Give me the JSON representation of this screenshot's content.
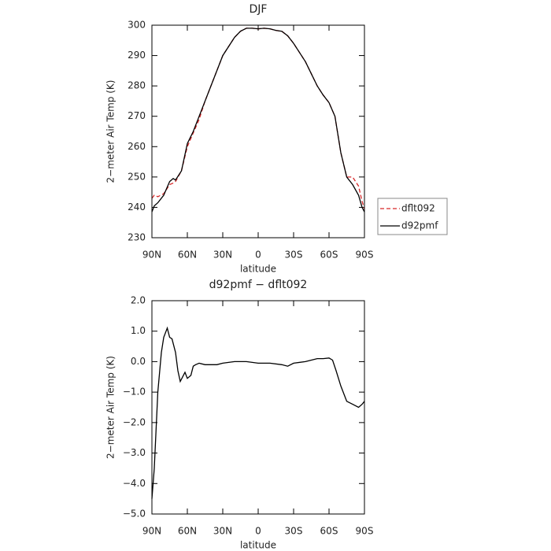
{
  "chart_data": [
    {
      "type": "line",
      "title": "DJF",
      "xlabel": "latitude",
      "ylabel": "2−meter Air Temp (K)",
      "x": [
        90,
        88,
        85,
        80,
        75,
        72,
        70,
        65,
        60,
        55,
        50,
        45,
        40,
        35,
        30,
        25,
        20,
        15,
        10,
        5,
        0,
        -5,
        -10,
        -15,
        -20,
        -25,
        -30,
        -35,
        -40,
        -45,
        -50,
        -55,
        -60,
        -65,
        -70,
        -75,
        -80,
        -85,
        -88,
        -90
      ],
      "series": [
        {
          "name": "dflt092",
          "color": "#d62728",
          "dash": true,
          "values": [
            243,
            244,
            243.5,
            244.5,
            247.5,
            248,
            248.5,
            252,
            260,
            264.5,
            269,
            275,
            280,
            285,
            290,
            293,
            296,
            298,
            299,
            299,
            298.8,
            299,
            298.8,
            298.3,
            298,
            296.5,
            294,
            291,
            288,
            284,
            280,
            277,
            274.5,
            270,
            258,
            250,
            250,
            247,
            242,
            239.5
          ]
        },
        {
          "name": "d92pmf",
          "color": "#000000",
          "dash": false,
          "values": [
            238.5,
            240.5,
            241.5,
            244,
            248.5,
            249.5,
            249,
            252,
            261,
            265,
            270,
            275,
            280,
            285,
            290,
            293,
            296,
            298,
            299,
            299,
            298.8,
            299,
            298.8,
            298.3,
            298,
            296.5,
            294,
            291,
            288,
            284,
            280,
            277,
            274.5,
            270,
            258,
            250,
            247.5,
            244,
            240,
            238.5
          ]
        }
      ],
      "xlim": [
        90,
        -90
      ],
      "ylim": [
        230,
        300
      ],
      "xticks": [
        {
          "value": 90,
          "label": "90N"
        },
        {
          "value": 60,
          "label": "60N"
        },
        {
          "value": 30,
          "label": "30N"
        },
        0,
        {
          "value": -30,
          "label": "30S"
        },
        {
          "value": -60,
          "label": "60S"
        },
        {
          "value": -90,
          "label": "90S"
        }
      ],
      "yticks": [
        230,
        240,
        250,
        260,
        270,
        280,
        290,
        300
      ],
      "legend": "right"
    },
    {
      "type": "line",
      "title": "d92pmf − dflt092",
      "xlabel": "latitude",
      "ylabel": "2−meter Air Temp (K)",
      "x": [
        90,
        88,
        85,
        82,
        80,
        77,
        75,
        73,
        70,
        68,
        66,
        64,
        62,
        60,
        57,
        55,
        53,
        50,
        45,
        40,
        35,
        30,
        20,
        10,
        0,
        -10,
        -20,
        -25,
        -30,
        -40,
        -50,
        -55,
        -60,
        -63,
        -66,
        -70,
        -75,
        -80,
        -85,
        -88,
        -90
      ],
      "series": [
        {
          "name": "d92pmf − dflt092",
          "color": "#000000",
          "dash": false,
          "values": [
            -4.5,
            -3.5,
            -1,
            0.3,
            0.8,
            1.1,
            0.8,
            0.75,
            0.3,
            -0.3,
            -0.65,
            -0.5,
            -0.35,
            -0.55,
            -0.45,
            -0.15,
            -0.1,
            -0.05,
            -0.1,
            -0.1,
            -0.1,
            -0.05,
            0,
            0,
            -0.05,
            -0.05,
            -0.1,
            -0.15,
            -0.05,
            0,
            0.1,
            0.1,
            0.12,
            0.05,
            -0.3,
            -0.8,
            -1.3,
            -1.4,
            -1.5,
            -1.4,
            -1.3
          ]
        }
      ],
      "xlim": [
        90,
        -90
      ],
      "ylim": [
        -5,
        2
      ],
      "xticks": [
        {
          "value": 90,
          "label": "90N"
        },
        {
          "value": 60,
          "label": "60N"
        },
        {
          "value": 30,
          "label": "30N"
        },
        0,
        {
          "value": -30,
          "label": "30S"
        },
        {
          "value": -60,
          "label": "60S"
        },
        {
          "value": -90,
          "label": "90S"
        }
      ],
      "yticks": [
        {
          "value": -5,
          "label": "−5.0"
        },
        {
          "value": -4,
          "label": "−4.0"
        },
        {
          "value": -3,
          "label": "−3.0"
        },
        {
          "value": -2,
          "label": "−2.0"
        },
        {
          "value": -1,
          "label": "−1.0"
        },
        {
          "value": 0,
          "label": "0.0"
        },
        {
          "value": 1,
          "label": "1.0"
        },
        {
          "value": 2,
          "label": "2.0"
        }
      ]
    }
  ]
}
